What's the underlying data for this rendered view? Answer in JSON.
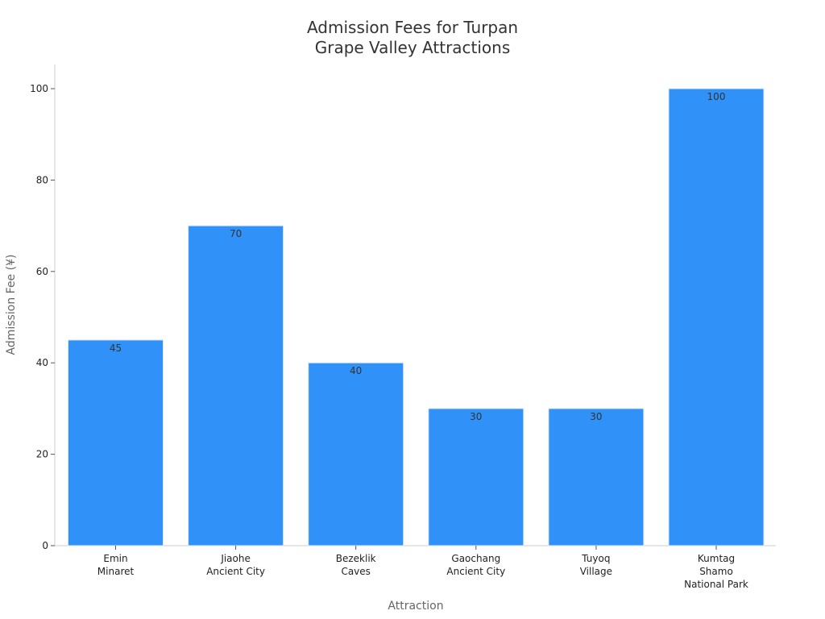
{
  "chart_data": {
    "type": "bar",
    "title": [
      "Admission Fees for Turpan",
      "Grape Valley Attractions"
    ],
    "xlabel": "Attraction",
    "ylabel": "Admission Fee (¥)",
    "categories": [
      [
        "Emin",
        "Minaret"
      ],
      [
        "Jiaohe",
        "Ancient City"
      ],
      [
        "Bezeklik",
        "Caves"
      ],
      [
        "Gaochang",
        "Ancient City"
      ],
      [
        "Tuyoq",
        "Village"
      ],
      [
        "Kumtag",
        "Shamo",
        "National Park"
      ]
    ],
    "values": [
      45,
      70,
      40,
      30,
      30,
      100
    ],
    "data_labels": [
      "45",
      "70",
      "40",
      "30",
      "30",
      "100"
    ],
    "yticks": [
      0,
      20,
      40,
      60,
      80,
      100
    ],
    "ylim": [
      0,
      105
    ],
    "grid": false,
    "bar_color": "#3092f8",
    "bar_edge_color": "#d9e8f7"
  }
}
